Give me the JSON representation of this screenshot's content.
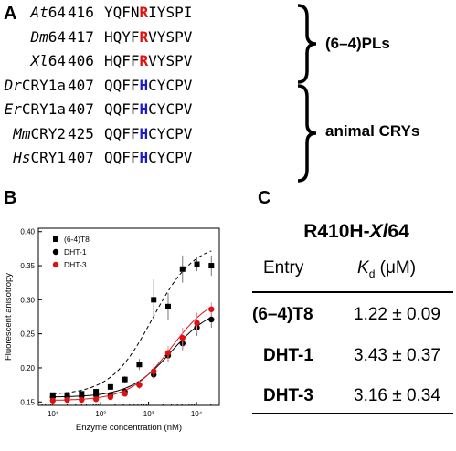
{
  "panels": {
    "a": "A",
    "b": "B",
    "c": "C"
  },
  "alignment": {
    "rows": [
      {
        "org": "At",
        "suffix": "64",
        "pos": "416",
        "pre": "YQFN",
        "key": "R",
        "post": "IYSPI",
        "key_color": "#e01010"
      },
      {
        "org": "Dm",
        "suffix": "64",
        "pos": "417",
        "pre": "HQYF",
        "key": "R",
        "post": "VYSPV",
        "key_color": "#e01010"
      },
      {
        "org": "Xl",
        "suffix": "64",
        "pos": "406",
        "pre": "HQFF",
        "key": "R",
        "post": "VYSPV",
        "key_color": "#e01010"
      },
      {
        "org": "Dr",
        "suffix": "CRY1a",
        "pos": "407",
        "pre": "QQFF",
        "key": "H",
        "post": "CYCPV",
        "key_color": "#1a1ad0"
      },
      {
        "org": "Er",
        "suffix": "CRY1a",
        "pos": "407",
        "pre": "QQFF",
        "key": "H",
        "post": "CYCPV",
        "key_color": "#1a1ad0"
      },
      {
        "org": "Mm",
        "suffix": "CRY2",
        "pos": "425",
        "pre": "QQFF",
        "key": "H",
        "post": "CYCPV",
        "key_color": "#1a1ad0"
      },
      {
        "org": "Hs",
        "suffix": "CRY1",
        "pos": "407",
        "pre": "QQFF",
        "key": "H",
        "post": "CYCPV",
        "key_color": "#1a1ad0"
      }
    ],
    "group_pl": "(6–4)PLs",
    "group_cry": "animal CRYs"
  },
  "chart_data": {
    "type": "scatter",
    "xlabel": "Enzyme concentration (nM)",
    "ylabel": "Fluorescent anisotropy",
    "xscale": "log",
    "xlim": [
      5,
      30000
    ],
    "ylim": [
      0.145,
      0.405
    ],
    "yticks": [
      "0.15",
      "0.20",
      "0.25",
      "0.30",
      "0.35",
      "0.40"
    ],
    "xticks": [
      "10¹",
      "10²",
      "10³",
      "10⁴"
    ],
    "legend_position": "top-left",
    "series": [
      {
        "name": "(6-4)T8",
        "color": "#000000",
        "marker": "square",
        "line": "dashed",
        "x": [
          10,
          20,
          40,
          80,
          160,
          320,
          640,
          1280,
          2560,
          5120,
          10240,
          20480
        ],
        "y": [
          0.16,
          0.16,
          0.162,
          0.165,
          0.172,
          0.183,
          0.205,
          0.3,
          0.29,
          0.345,
          0.352,
          0.35
        ],
        "err": [
          0.003,
          0.003,
          0.003,
          0.004,
          0.004,
          0.005,
          0.008,
          0.03,
          0.02,
          0.02,
          0.01,
          0.015
        ]
      },
      {
        "name": "DHT-1",
        "color": "#000000",
        "marker": "circle",
        "line": "solid",
        "x": [
          10,
          20,
          40,
          80,
          160,
          320,
          640,
          1280,
          2560,
          5120,
          10240,
          20480
        ],
        "y": [
          0.157,
          0.157,
          0.158,
          0.16,
          0.16,
          0.165,
          0.175,
          0.19,
          0.218,
          0.236,
          0.259,
          0.271
        ],
        "err": [
          0.002,
          0.002,
          0.002,
          0.003,
          0.003,
          0.004,
          0.005,
          0.006,
          0.01,
          0.01,
          0.012,
          0.012
        ]
      },
      {
        "name": "DHT-3",
        "color": "#e01010",
        "marker": "circle",
        "line": "solid",
        "x": [
          10,
          20,
          40,
          80,
          160,
          320,
          640,
          1280,
          2560,
          5120,
          10240,
          20480
        ],
        "y": [
          0.152,
          0.153,
          0.153,
          0.154,
          0.157,
          0.162,
          0.175,
          0.195,
          0.222,
          0.244,
          0.266,
          0.286
        ],
        "err": [
          0.002,
          0.002,
          0.002,
          0.003,
          0.003,
          0.004,
          0.006,
          0.01,
          0.01,
          0.015,
          0.015,
          0.01
        ]
      }
    ]
  },
  "table": {
    "title_pre": "R410H-",
    "title_ital": "Xl",
    "title_post": "64",
    "col_entry": "Entry",
    "col_kd_k": "K",
    "col_kd_sub": "d",
    "col_kd_unit": " (μM)",
    "rows": [
      {
        "entry": "(6–4)T8",
        "kd": "1.22 ± 0.09"
      },
      {
        "entry": "DHT-1",
        "kd": "3.43 ± 0.37"
      },
      {
        "entry": "DHT-3",
        "kd": "3.16 ± 0.34"
      }
    ]
  }
}
